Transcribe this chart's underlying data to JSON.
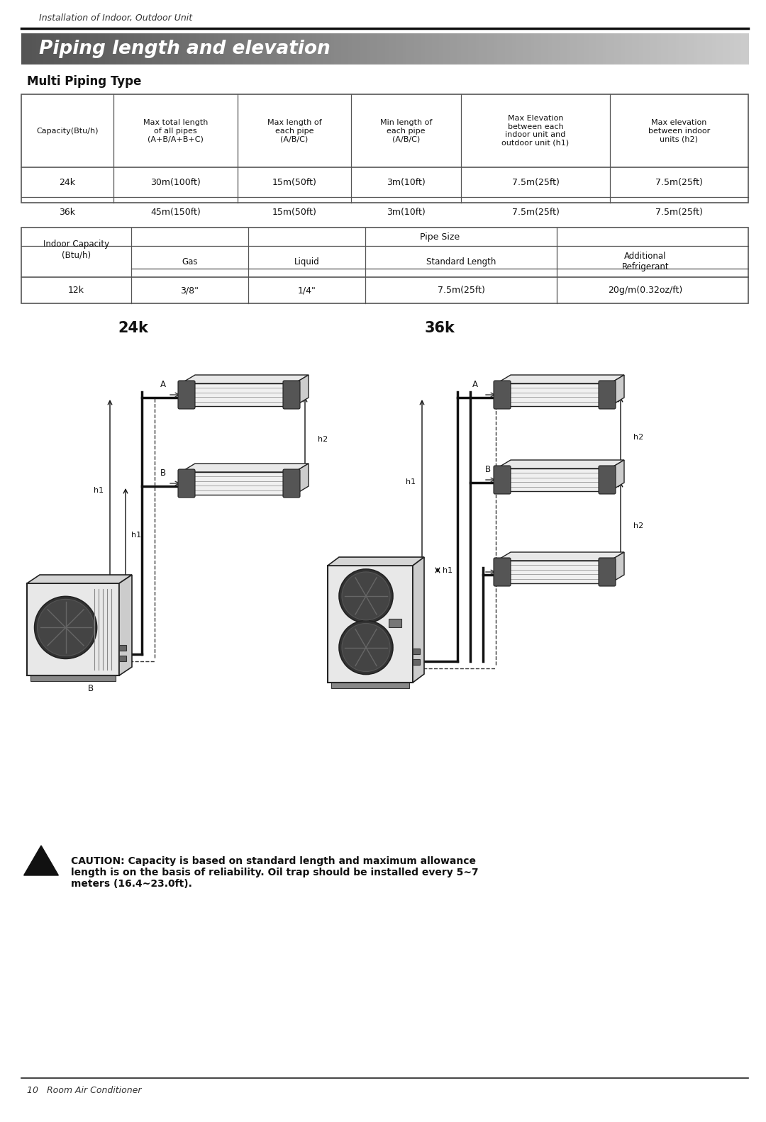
{
  "page_title": "Piping length and elevation",
  "section_header": "Installation of Indoor, Outdoor Unit",
  "subsection": "Multi Piping Type",
  "table1_headers": [
    "Capacity(Btu/h)",
    "Max total length\nof all pipes\n(A+B/A+B+C)",
    "Max length of\neach pipe\n(A/B/C)",
    "Min length of\neach pipe\n(A/B/C)",
    "Max Elevation\nbetween each\nindoor unit and\noutdoor unit (h1)",
    "Max elevation\nbetween indoor\nunits (h2)"
  ],
  "table1_rows": [
    [
      "24k",
      "30m(100ft)",
      "15m(50ft)",
      "3m(10ft)",
      "7.5m(25ft)",
      "7.5m(25ft)"
    ],
    [
      "36k",
      "45m(150ft)",
      "15m(50ft)",
      "3m(10ft)",
      "7.5m(25ft)",
      "7.5m(25ft)"
    ]
  ],
  "table2_headers_sub": [
    "Gas",
    "Liquid",
    "Standard Length",
    "Additional\nRefrigerant"
  ],
  "table2_rows": [
    [
      "12k",
      "3/8\"",
      "1/4\"",
      "7.5m(25ft)",
      "20g/m(0.32oz/ft)"
    ]
  ],
  "label_24k": "24k",
  "label_36k": "36k",
  "caution_bold": "CAUTION: Capacity is based on standard length and maximum allowance\nlength is on the basis of reliability. Oil trap should be installed every 5~7\nmeters (16.4~23.0ft).",
  "footer_text": "10   Room Air Conditioner",
  "bg_color": "#ffffff",
  "table_line_color": "#555555"
}
